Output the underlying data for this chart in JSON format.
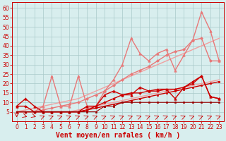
{
  "bg_color": "#d8eeee",
  "grid_color": "#aacaca",
  "xlabel": "Vent moyen/en rafales ( km/h )",
  "xlabel_color": "#cc0000",
  "xlabel_fontsize": 7.0,
  "xtick_fontsize": 5.5,
  "ytick_fontsize": 5.5,
  "tick_color": "#cc0000",
  "xlim": [
    -0.5,
    23.5
  ],
  "ylim": [
    0,
    63
  ],
  "yticks": [
    5,
    10,
    15,
    20,
    25,
    30,
    35,
    40,
    45,
    50,
    55,
    60
  ],
  "series": [
    {
      "x": [
        0,
        1,
        2,
        3,
        4,
        5,
        6,
        7,
        8,
        9,
        10,
        11,
        12,
        13,
        14,
        15,
        16,
        17,
        18,
        19,
        20,
        21,
        22,
        23
      ],
      "y": [
        5,
        5,
        5,
        5,
        5,
        5,
        5,
        6,
        7,
        8,
        9,
        10,
        11,
        12,
        13,
        14,
        15,
        16,
        17,
        18,
        19,
        20,
        21,
        22
      ],
      "color": "#f0a0a0",
      "lw": 1.0,
      "marker": null,
      "ms": 0,
      "alpha": 1.0
    },
    {
      "x": [
        0,
        1,
        2,
        3,
        4,
        5,
        6,
        7,
        8,
        9,
        10,
        11,
        12,
        13,
        14,
        15,
        16,
        17,
        18,
        19,
        20,
        21,
        22,
        23
      ],
      "y": [
        5,
        6,
        7,
        8,
        9,
        10,
        11,
        12,
        14,
        16,
        18,
        20,
        22,
        24,
        26,
        28,
        30,
        32,
        34,
        36,
        38,
        40,
        42,
        44
      ],
      "color": "#f0a0a0",
      "lw": 1.0,
      "marker": null,
      "ms": 0,
      "alpha": 1.0
    },
    {
      "x": [
        0,
        1,
        2,
        3,
        4,
        5,
        6,
        7,
        8,
        9,
        10,
        11,
        12,
        13,
        14,
        15,
        16,
        17,
        18,
        19,
        20,
        21,
        22,
        23
      ],
      "y": [
        5,
        5,
        5,
        6,
        7,
        8,
        9,
        10,
        12,
        14,
        16,
        19,
        22,
        25,
        27,
        29,
        32,
        35,
        37,
        38,
        43,
        44,
        32,
        32
      ],
      "color": "#e87878",
      "lw": 1.0,
      "marker": "D",
      "ms": 2.0,
      "alpha": 1.0
    },
    {
      "x": [
        0,
        1,
        2,
        3,
        4,
        5,
        6,
        7,
        8,
        9,
        10,
        11,
        12,
        13,
        14,
        15,
        16,
        17,
        18,
        19,
        20,
        21,
        22,
        23
      ],
      "y": [
        5,
        5,
        5,
        8,
        24,
        8,
        8,
        24,
        8,
        8,
        16,
        22,
        30,
        44,
        36,
        32,
        36,
        38,
        27,
        35,
        43,
        58,
        48,
        32
      ],
      "color": "#e87878",
      "lw": 1.0,
      "marker": "^",
      "ms": 2.5,
      "alpha": 1.0
    },
    {
      "x": [
        0,
        1,
        2,
        3,
        4,
        5,
        6,
        7,
        8,
        9,
        10,
        11,
        12,
        13,
        14,
        15,
        16,
        17,
        18,
        19,
        20,
        21,
        22,
        23
      ],
      "y": [
        5,
        5,
        5,
        5,
        5,
        5,
        5,
        5,
        6,
        7,
        8,
        9,
        10,
        11,
        12,
        13,
        14,
        15,
        16,
        17,
        18,
        19,
        20,
        21
      ],
      "color": "#cc0000",
      "lw": 1.0,
      "marker": "s",
      "ms": 1.8,
      "alpha": 1.0
    },
    {
      "x": [
        0,
        1,
        2,
        3,
        4,
        5,
        6,
        7,
        8,
        9,
        10,
        11,
        12,
        13,
        14,
        15,
        16,
        17,
        18,
        19,
        20,
        21,
        22,
        23
      ],
      "y": [
        8,
        8,
        5,
        5,
        5,
        5,
        5,
        5,
        6,
        8,
        10,
        12,
        14,
        15,
        15,
        16,
        16,
        17,
        17,
        18,
        21,
        24,
        13,
        12
      ],
      "color": "#cc0000",
      "lw": 1.0,
      "marker": "D",
      "ms": 1.8,
      "alpha": 1.0
    },
    {
      "x": [
        0,
        1,
        2,
        3,
        4,
        5,
        6,
        7,
        8,
        9,
        10,
        11,
        12,
        13,
        14,
        15,
        16,
        17,
        18,
        19,
        20,
        21,
        22,
        23
      ],
      "y": [
        8,
        12,
        8,
        5,
        5,
        5,
        5,
        5,
        8,
        8,
        14,
        16,
        14,
        14,
        18,
        16,
        17,
        17,
        12,
        18,
        20,
        24,
        13,
        12
      ],
      "color": "#cc0000",
      "lw": 1.0,
      "marker": "^",
      "ms": 2.5,
      "alpha": 1.0
    },
    {
      "x": [
        0,
        1,
        2,
        3,
        4,
        5,
        6,
        7,
        8,
        9,
        10,
        11,
        12,
        13,
        14,
        15,
        16,
        17,
        18,
        19,
        20,
        21,
        22,
        23
      ],
      "y": [
        5,
        5,
        5,
        5,
        5,
        5,
        5,
        5,
        5,
        5,
        8,
        8,
        10,
        10,
        10,
        10,
        10,
        10,
        10,
        10,
        10,
        10,
        10,
        10
      ],
      "color": "#990000",
      "lw": 0.8,
      "marker": "s",
      "ms": 1.5,
      "alpha": 1.0
    }
  ],
  "wind_arrows": {
    "x": [
      0,
      1,
      2,
      3,
      4,
      5,
      6,
      7,
      8,
      9,
      10,
      11,
      12,
      13,
      14,
      15,
      16,
      17,
      18,
      19,
      20,
      21,
      22,
      23
    ],
    "y": 2.5,
    "color": "#cc0000"
  }
}
